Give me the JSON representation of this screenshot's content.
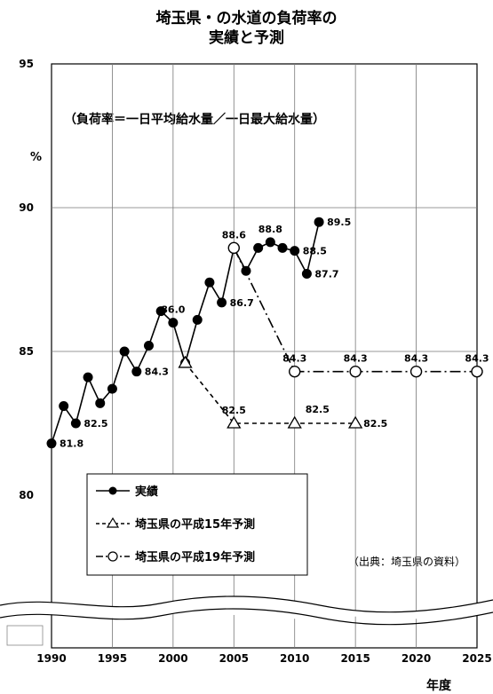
{
  "chart_data": {
    "type": "line",
    "title": "埼玉県・の水道の負荷率の",
    "subtitle": "実績と予測",
    "note": "（負荷率＝一日平均給水量／一日最大給水量）",
    "ylabel": "%",
    "xlabel": "年度",
    "source": "（出典：埼玉県の資料）",
    "ylim": [
      80,
      95
    ],
    "xlim": [
      1990,
      2025
    ],
    "x_ticks": [
      1990,
      1995,
      2000,
      2005,
      2010,
      2015,
      2020,
      2025
    ],
    "y_ticks": [
      80,
      85,
      90,
      95
    ],
    "legend": [
      "実績",
      "埼玉県の平成15年予測",
      "埼玉県の平成19年予測"
    ],
    "legend_position": "bottom-left",
    "grid": true,
    "series": [
      {
        "name": "実績",
        "style": "solid-filled-circle",
        "color": "#000000",
        "x": [
          1990,
          1991,
          1992,
          1993,
          1994,
          1995,
          1996,
          1997,
          1998,
          1999,
          2000,
          2001,
          2002,
          2003,
          2004,
          2005,
          2006,
          2007,
          2008,
          2009,
          2010,
          2011,
          2012
        ],
        "y": [
          81.8,
          83.1,
          82.5,
          84.1,
          83.2,
          83.7,
          85.0,
          84.3,
          85.2,
          86.4,
          86.0,
          84.6,
          86.1,
          87.4,
          86.7,
          88.6,
          87.8,
          88.6,
          88.8,
          88.6,
          88.5,
          87.7,
          89.5
        ]
      },
      {
        "name": "埼玉県の平成15年予測",
        "style": "dashed-open-triangle",
        "color": "#000000",
        "x": [
          2001,
          2005,
          2010,
          2015
        ],
        "y": [
          84.6,
          82.5,
          82.5,
          82.5
        ]
      },
      {
        "name": "埼玉県の平成19年予測",
        "style": "dashdot-open-circle",
        "color": "#000000",
        "x": [
          2005,
          2010,
          2015,
          2020,
          2025
        ],
        "y": [
          88.6,
          84.3,
          84.3,
          84.3,
          84.3
        ]
      }
    ],
    "data_labels": [
      {
        "x": 1990,
        "y": 81.8,
        "text": "81.8",
        "pos": "right"
      },
      {
        "x": 1992,
        "y": 82.5,
        "text": "82.5",
        "pos": "right"
      },
      {
        "x": 1997,
        "y": 84.3,
        "text": "84.3",
        "pos": "right"
      },
      {
        "x": 2000,
        "y": 86.0,
        "text": "86.0",
        "pos": "above"
      },
      {
        "x": 2005,
        "y": 88.6,
        "text": "88.6",
        "pos": "above"
      },
      {
        "x": 2004,
        "y": 86.7,
        "text": "86.7",
        "pos": "right"
      },
      {
        "x": 2008,
        "y": 88.8,
        "text": "88.8",
        "pos": "above"
      },
      {
        "x": 2010,
        "y": 88.5,
        "text": "88.5",
        "pos": "right"
      },
      {
        "x": 2011,
        "y": 87.7,
        "text": "87.7",
        "pos": "right"
      },
      {
        "x": 2012,
        "y": 89.5,
        "text": "89.5",
        "pos": "right"
      },
      {
        "x": 2005,
        "y": 82.5,
        "text": "82.5",
        "pos": "above"
      },
      {
        "x": 2010,
        "y": 82.5,
        "text": "82.5",
        "pos": "above-right"
      },
      {
        "x": 2015,
        "y": 82.5,
        "text": "82.5",
        "pos": "right"
      },
      {
        "x": 2010,
        "y": 84.3,
        "text": "84.3",
        "pos": "above"
      },
      {
        "x": 2015,
        "y": 84.3,
        "text": "84.3",
        "pos": "above"
      },
      {
        "x": 2020,
        "y": 84.3,
        "text": "84.3",
        "pos": "above"
      },
      {
        "x": 2025,
        "y": 84.3,
        "text": "84.3",
        "pos": "above"
      }
    ]
  }
}
